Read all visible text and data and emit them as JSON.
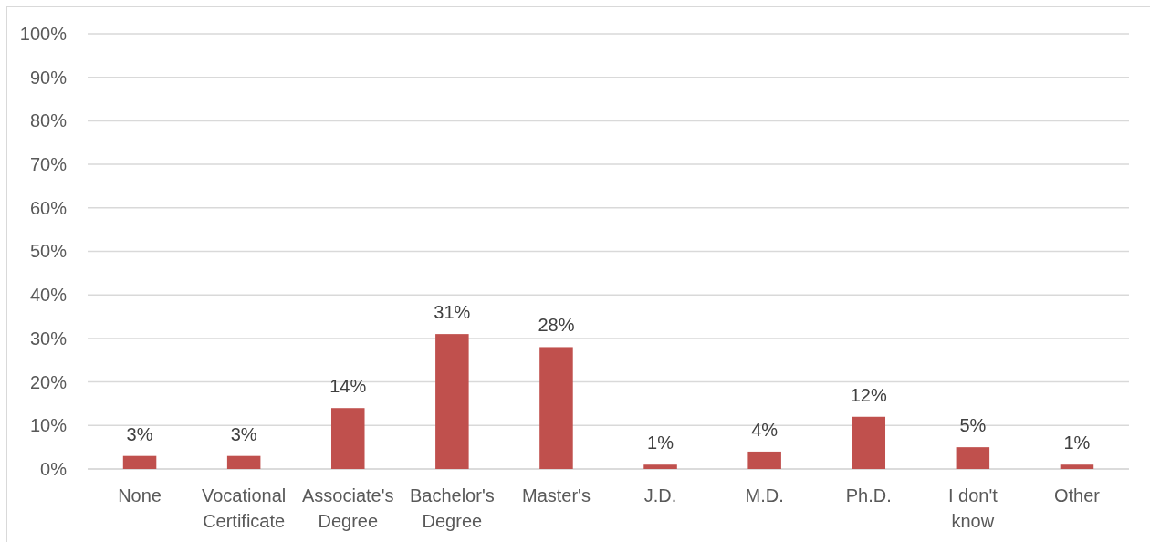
{
  "chart_data": {
    "type": "bar",
    "categories": [
      "None",
      "Vocational Certificate",
      "Associate's Degree",
      "Bachelor's Degree",
      "Master's",
      "J.D.",
      "M.D.",
      "Ph.D.",
      "I don't know",
      "Other"
    ],
    "values": [
      3,
      3,
      14,
      31,
      28,
      1,
      4,
      12,
      5,
      1
    ],
    "value_labels": [
      "3%",
      "3%",
      "14%",
      "31%",
      "28%",
      "1%",
      "4%",
      "12%",
      "5%",
      "1%"
    ],
    "color": "#c0504d",
    "ylim": [
      0,
      100
    ],
    "yticks": [
      {
        "value": 0,
        "label": "0%"
      },
      {
        "value": 10,
        "label": "10%"
      },
      {
        "value": 20,
        "label": "20%"
      },
      {
        "value": 30,
        "label": "30%"
      },
      {
        "value": 40,
        "label": "40%"
      },
      {
        "value": 50,
        "label": "50%"
      },
      {
        "value": 60,
        "label": "60%"
      },
      {
        "value": 70,
        "label": "70%"
      },
      {
        "value": 80,
        "label": "80%"
      },
      {
        "value": 90,
        "label": "90%"
      },
      {
        "value": 100,
        "label": "100%"
      }
    ],
    "grid": "y"
  }
}
